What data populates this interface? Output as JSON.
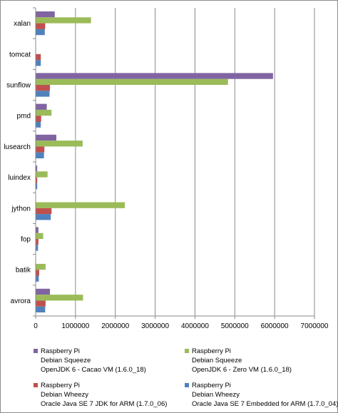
{
  "chart_data": {
    "type": "bar",
    "orientation": "horizontal",
    "categories": [
      "xalan",
      "tomcat",
      "sunflow",
      "pmd",
      "lusearch",
      "luindex",
      "jython",
      "fop",
      "batik",
      "avrora"
    ],
    "series": [
      {
        "legend_lines": [
          "Raspberry Pi",
          "Debian Squeeze",
          "OpenJDK 6 - Cacao VM (1.6.0_18)"
        ],
        "color": "#8064a2",
        "values": [
          470000,
          null,
          5950000,
          270000,
          510000,
          30000,
          null,
          60000,
          null,
          350000
        ]
      },
      {
        "legend_lines": [
          "Raspberry Pi",
          "Debian Squeeze",
          "OpenJDK 6 - Zero VM (1.6.0_18)"
        ],
        "color": "#9bbb59",
        "values": [
          1380000,
          null,
          4820000,
          390000,
          1170000,
          290000,
          2230000,
          180000,
          240000,
          1180000
        ]
      },
      {
        "legend_lines": [
          "Raspberry Pi",
          "Debian Wheezy",
          "Oracle Java SE 7 JDK for ARM (1.7.0_06)"
        ],
        "color": "#c0504d",
        "values": [
          230000,
          120000,
          350000,
          130000,
          210000,
          30000,
          390000,
          60000,
          80000,
          240000
        ]
      },
      {
        "legend_lines": [
          "Raspberry Pi",
          "Debian Wheezy",
          "Oracle Java SE 7 Embedded for ARM (1.7.0_04)"
        ],
        "color": "#4f81bd",
        "values": [
          220000,
          120000,
          340000,
          120000,
          200000,
          30000,
          370000,
          50000,
          70000,
          230000
        ]
      }
    ],
    "xlim": [
      0,
      7000000
    ],
    "xticks": [
      "0",
      "1000000",
      "2000000",
      "3000000",
      "4000000",
      "5000000",
      "6000000",
      "7000000"
    ],
    "grid": true,
    "legend_position": "bottom"
  }
}
